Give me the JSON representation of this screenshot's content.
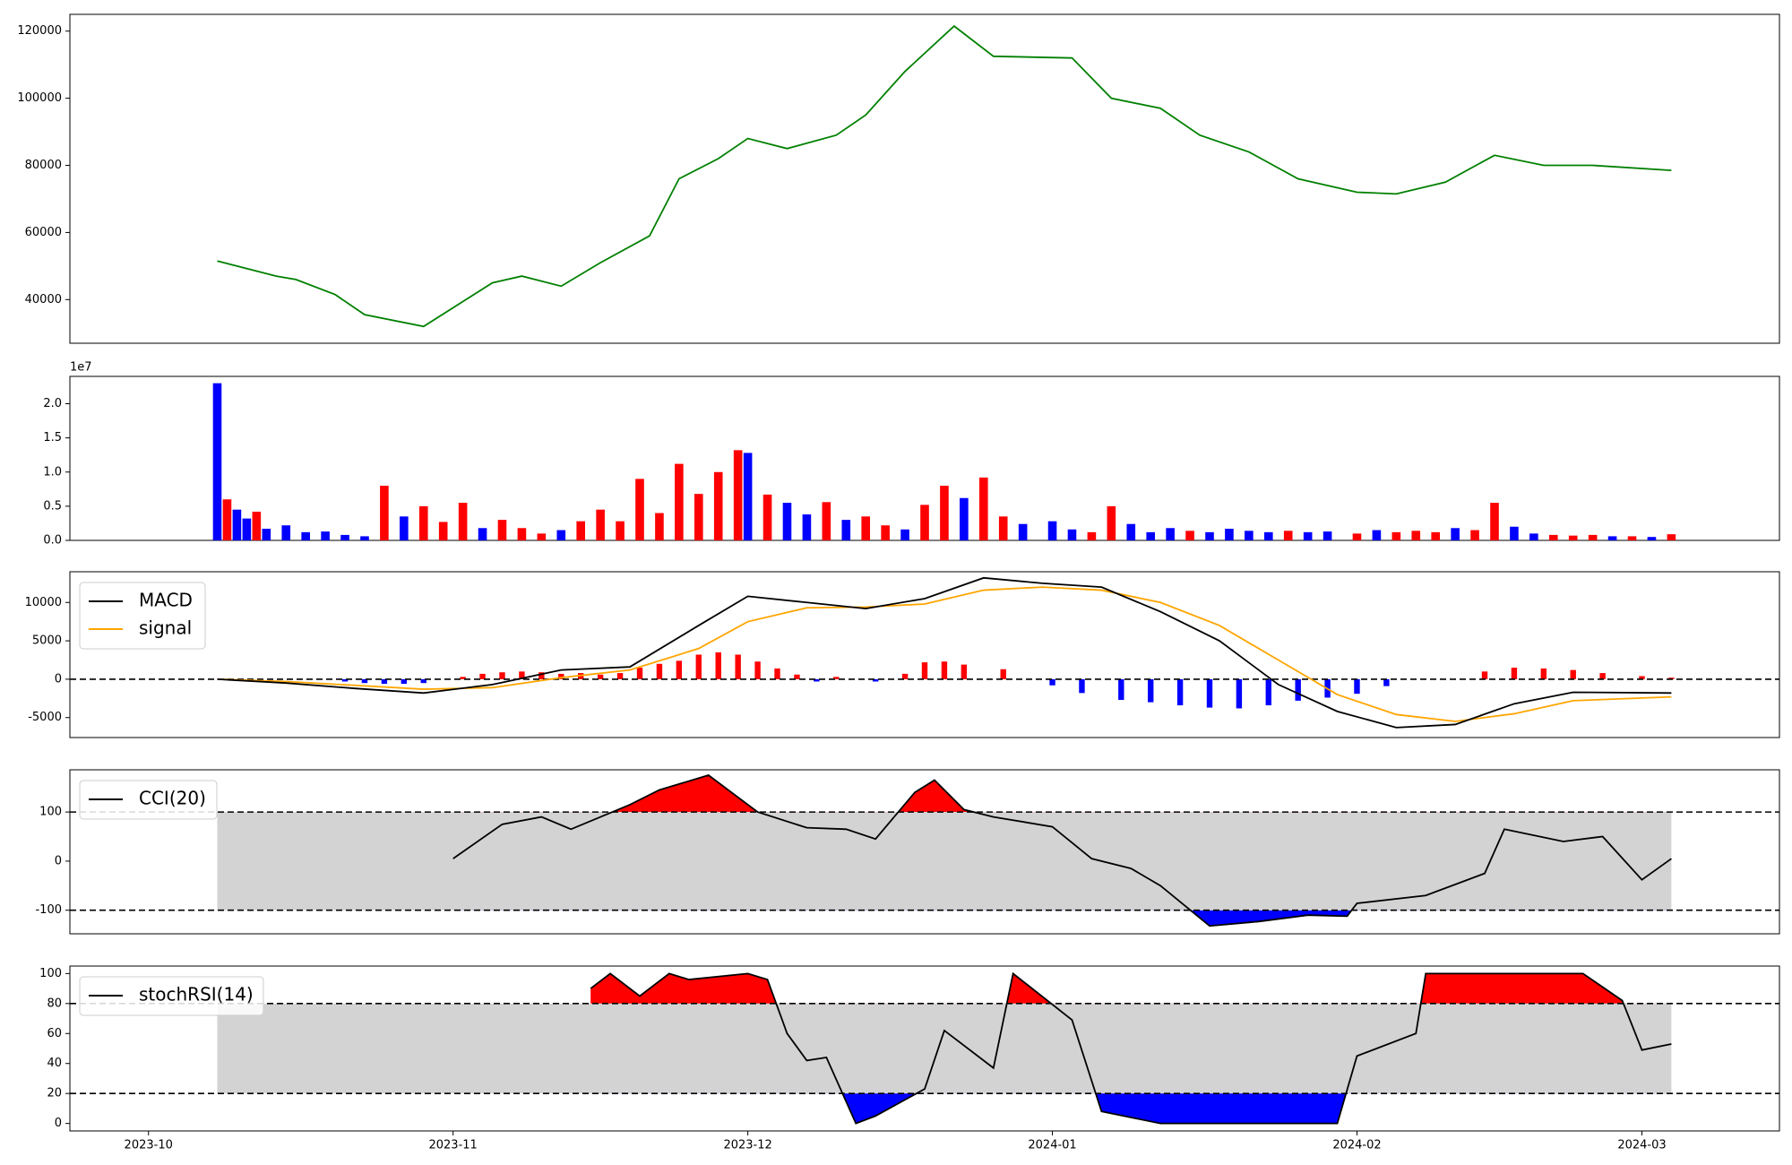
{
  "colors": {
    "price_line": "#008000",
    "up": "#ff0000",
    "down": "#0000ff",
    "macd": "#000000",
    "signal": "#ffa500",
    "band_fill": "#d3d3d3"
  },
  "x_axis": {
    "ticks": [
      "2023-10",
      "2023-11",
      "2023-12",
      "2024-01",
      "2024-02",
      "2024-03"
    ]
  },
  "chart_data": [
    {
      "type": "line",
      "name": "price",
      "ylim": [
        27000,
        125000
      ],
      "yticks": [
        40000,
        60000,
        80000,
        100000,
        120000
      ],
      "x": [
        "2023-10-08",
        "2023-10-14",
        "2023-10-16",
        "2023-10-20",
        "2023-10-23",
        "2023-10-29",
        "2023-11-05",
        "2023-11-08",
        "2023-11-12",
        "2023-11-16",
        "2023-11-21",
        "2023-11-24",
        "2023-11-28",
        "2023-12-01",
        "2023-12-05",
        "2023-12-10",
        "2023-12-13",
        "2023-12-17",
        "2023-12-22",
        "2023-12-26",
        "2024-01-03",
        "2024-01-07",
        "2024-01-12",
        "2024-01-16",
        "2024-01-21",
        "2024-01-26",
        "2024-02-01",
        "2024-02-05",
        "2024-02-10",
        "2024-02-15",
        "2024-02-20",
        "2024-02-25",
        "2024-03-04"
      ],
      "values": [
        51500,
        47000,
        46000,
        41500,
        35500,
        32000,
        45000,
        47000,
        44000,
        51000,
        59000,
        76000,
        82000,
        88000,
        85000,
        89000,
        95000,
        108000,
        121500,
        112500,
        112000,
        100000,
        97000,
        89000,
        84000,
        76000,
        72000,
        71500,
        75000,
        83000,
        80000,
        80000,
        78500
      ]
    },
    {
      "type": "bar",
      "name": "volume",
      "offset_label": "1e7",
      "ylim": [
        0,
        2.4
      ],
      "yticks": [
        "0.0",
        "0.5",
        "1.0",
        "1.5",
        "2.0"
      ],
      "x": [
        "2023-10-08",
        "2023-10-09",
        "2023-10-10",
        "2023-10-11",
        "2023-10-12",
        "2023-10-13",
        "2023-10-15",
        "2023-10-17",
        "2023-10-19",
        "2023-10-21",
        "2023-10-23",
        "2023-10-25",
        "2023-10-27",
        "2023-10-29",
        "2023-10-31",
        "2023-11-02",
        "2023-11-04",
        "2023-11-06",
        "2023-11-08",
        "2023-11-10",
        "2023-11-12",
        "2023-11-14",
        "2023-11-16",
        "2023-11-18",
        "2023-11-20",
        "2023-11-22",
        "2023-11-24",
        "2023-11-26",
        "2023-11-28",
        "2023-11-30",
        "2023-12-01",
        "2023-12-03",
        "2023-12-05",
        "2023-12-07",
        "2023-12-09",
        "2023-12-11",
        "2023-12-13",
        "2023-12-15",
        "2023-12-17",
        "2023-12-19",
        "2023-12-21",
        "2023-12-23",
        "2023-12-25",
        "2023-12-27",
        "2023-12-29",
        "2024-01-01",
        "2024-01-03",
        "2024-01-05",
        "2024-01-07",
        "2024-01-09",
        "2024-01-11",
        "2024-01-13",
        "2024-01-15",
        "2024-01-17",
        "2024-01-19",
        "2024-01-21",
        "2024-01-23",
        "2024-01-25",
        "2024-01-27",
        "2024-01-29",
        "2024-02-01",
        "2024-02-03",
        "2024-02-05",
        "2024-02-07",
        "2024-02-09",
        "2024-02-11",
        "2024-02-13",
        "2024-02-15",
        "2024-02-17",
        "2024-02-19",
        "2024-02-21",
        "2024-02-23",
        "2024-02-25",
        "2024-02-27",
        "2024-02-29",
        "2024-03-02",
        "2024-03-04"
      ],
      "values": [
        2.3,
        0.6,
        0.45,
        0.32,
        0.42,
        0.17,
        0.22,
        0.12,
        0.13,
        0.08,
        0.06,
        0.8,
        0.35,
        0.5,
        0.27,
        0.55,
        0.18,
        0.3,
        0.18,
        0.1,
        0.15,
        0.28,
        0.45,
        0.28,
        0.9,
        0.4,
        1.12,
        0.68,
        1.0,
        1.32,
        1.28,
        0.67,
        0.55,
        0.38,
        0.56,
        0.3,
        0.35,
        0.22,
        0.16,
        0.52,
        0.8,
        0.62,
        0.92,
        0.35,
        0.24,
        0.28,
        0.16,
        0.12,
        0.5,
        0.24,
        0.12,
        0.18,
        0.14,
        0.12,
        0.17,
        0.14,
        0.12,
        0.14,
        0.12,
        0.13,
        0.1,
        0.15,
        0.12,
        0.14,
        0.12,
        0.18,
        0.15,
        0.55,
        0.2,
        0.1,
        0.08,
        0.07,
        0.08,
        0.06,
        0.06,
        0.05,
        0.09
      ],
      "direction": [
        "down",
        "up",
        "down",
        "down",
        "up",
        "down",
        "down",
        "down",
        "down",
        "down",
        "down",
        "up",
        "down",
        "up",
        "up",
        "up",
        "down",
        "up",
        "up",
        "up",
        "down",
        "up",
        "up",
        "up",
        "up",
        "up",
        "up",
        "up",
        "up",
        "up",
        "down",
        "up",
        "down",
        "down",
        "up",
        "down",
        "up",
        "up",
        "down",
        "up",
        "up",
        "down",
        "up",
        "up",
        "down",
        "down",
        "down",
        "up",
        "up",
        "down",
        "down",
        "down",
        "up",
        "down",
        "down",
        "down",
        "down",
        "up",
        "down",
        "down",
        "up",
        "down",
        "up",
        "up",
        "up",
        "down",
        "up",
        "up",
        "down",
        "down",
        "up",
        "up",
        "up",
        "down",
        "up",
        "down",
        "up"
      ]
    },
    {
      "type": "line",
      "name": "macd",
      "legend": [
        "MACD",
        "signal"
      ],
      "ylim": [
        -7600,
        14000
      ],
      "yticks": [
        -5000,
        0,
        5000,
        10000
      ],
      "zero_line": 0,
      "x": [
        "2023-10-08",
        "2023-10-15",
        "2023-10-22",
        "2023-10-29",
        "2023-11-05",
        "2023-11-12",
        "2023-11-19",
        "2023-11-26",
        "2023-12-01",
        "2023-12-07",
        "2023-12-13",
        "2023-12-19",
        "2023-12-25",
        "2023-12-31",
        "2024-01-06",
        "2024-01-12",
        "2024-01-18",
        "2024-01-24",
        "2024-01-30",
        "2024-02-05",
        "2024-02-11",
        "2024-02-17",
        "2024-02-23",
        "2024-03-04"
      ],
      "series": [
        {
          "name": "MACD",
          "values": [
            0,
            -500,
            -1200,
            -1800,
            -700,
            1200,
            1600,
            7000,
            10800,
            10000,
            9200,
            10500,
            13200,
            12500,
            12000,
            8800,
            5000,
            -700,
            -4200,
            -6300,
            -5900,
            -3200,
            -1700,
            -1800
          ]
        },
        {
          "name": "signal",
          "values": [
            0,
            -300,
            -800,
            -1300,
            -1100,
            200,
            1200,
            4000,
            7500,
            9300,
            9400,
            9800,
            11600,
            12000,
            11600,
            10000,
            7000,
            2500,
            -2000,
            -4600,
            -5500,
            -4500,
            -2800,
            -2300
          ]
        }
      ],
      "histogram": {
        "x": [
          "2023-10-21",
          "2023-10-23",
          "2023-10-25",
          "2023-10-27",
          "2023-10-29",
          "2023-11-02",
          "2023-11-04",
          "2023-11-06",
          "2023-11-08",
          "2023-11-10",
          "2023-11-12",
          "2023-11-14",
          "2023-11-16",
          "2023-11-18",
          "2023-11-20",
          "2023-11-22",
          "2023-11-24",
          "2023-11-26",
          "2023-11-28",
          "2023-11-30",
          "2023-12-02",
          "2023-12-04",
          "2023-12-06",
          "2023-12-08",
          "2023-12-10",
          "2023-12-14",
          "2023-12-17",
          "2023-12-19",
          "2023-12-21",
          "2023-12-23",
          "2023-12-27",
          "2024-01-01",
          "2024-01-04",
          "2024-01-08",
          "2024-01-11",
          "2024-01-14",
          "2024-01-17",
          "2024-01-20",
          "2024-01-23",
          "2024-01-26",
          "2024-01-29",
          "2024-02-01",
          "2024-02-04",
          "2024-02-14",
          "2024-02-17",
          "2024-02-20",
          "2024-02-23",
          "2024-02-26",
          "2024-03-01",
          "2024-03-04"
        ],
        "values": [
          -300,
          -500,
          -600,
          -600,
          -500,
          300,
          700,
          900,
          1000,
          900,
          700,
          800,
          600,
          800,
          1500,
          2000,
          2400,
          3200,
          3500,
          3200,
          2300,
          1400,
          600,
          -300,
          300,
          -300,
          700,
          2200,
          2300,
          1900,
          1300,
          -800,
          -1800,
          -2700,
          -3000,
          -3400,
          -3700,
          -3800,
          -3400,
          -2800,
          -2400,
          -1900,
          -900,
          1000,
          1500,
          1400,
          1200,
          800,
          400,
          200
        ]
      }
    },
    {
      "type": "area",
      "name": "cci",
      "legend": [
        "CCI(20)"
      ],
      "ylim": [
        -148,
        186
      ],
      "yticks": [
        -100,
        0,
        100
      ],
      "thresholds": [
        -100,
        100
      ],
      "x": [
        "2023-11-01",
        "2023-11-06",
        "2023-11-10",
        "2023-11-13",
        "2023-11-19",
        "2023-11-22",
        "2023-11-27",
        "2023-11-29",
        "2023-12-02",
        "2023-12-07",
        "2023-12-11",
        "2023-12-14",
        "2023-12-18",
        "2023-12-20",
        "2023-12-23",
        "2023-12-26",
        "2024-01-01",
        "2024-01-05",
        "2024-01-09",
        "2024-01-12",
        "2024-01-17",
        "2024-01-22",
        "2024-01-27",
        "2024-01-31",
        "2024-02-01",
        "2024-02-08",
        "2024-02-14",
        "2024-02-16",
        "2024-02-22",
        "2024-02-26",
        "2024-03-01",
        "2024-03-04"
      ],
      "values": [
        5,
        75,
        90,
        65,
        115,
        145,
        175,
        145,
        100,
        68,
        65,
        45,
        140,
        165,
        105,
        90,
        70,
        5,
        -15,
        -50,
        -132,
        -123,
        -110,
        -112,
        -86,
        -70,
        -25,
        65,
        40,
        50,
        -38,
        5
      ]
    },
    {
      "type": "area",
      "name": "stochrsi",
      "legend": [
        "stochRSI(14)"
      ],
      "ylim": [
        -5,
        105
      ],
      "yticks": [
        0,
        20,
        40,
        60,
        80,
        100
      ],
      "thresholds": [
        20,
        80
      ],
      "x": [
        "2023-11-15",
        "2023-11-17",
        "2023-11-20",
        "2023-11-23",
        "2023-11-25",
        "2023-12-01",
        "2023-12-03",
        "2023-12-05",
        "2023-12-07",
        "2023-12-09",
        "2023-12-12",
        "2023-12-14",
        "2023-12-19",
        "2023-12-21",
        "2023-12-26",
        "2023-12-28",
        "2024-01-03",
        "2024-01-06",
        "2024-01-12",
        "2024-01-22",
        "2024-01-30",
        "2024-02-01",
        "2024-02-07",
        "2024-02-08",
        "2024-02-20",
        "2024-02-24",
        "2024-02-28",
        "2024-03-01",
        "2024-03-04"
      ],
      "values": [
        90,
        100,
        85,
        100,
        96,
        100,
        96,
        60,
        42,
        44,
        0,
        5,
        23,
        62,
        37,
        100,
        69,
        8,
        0,
        0,
        0,
        45,
        60,
        100,
        100,
        100,
        82,
        49,
        53
      ]
    }
  ]
}
